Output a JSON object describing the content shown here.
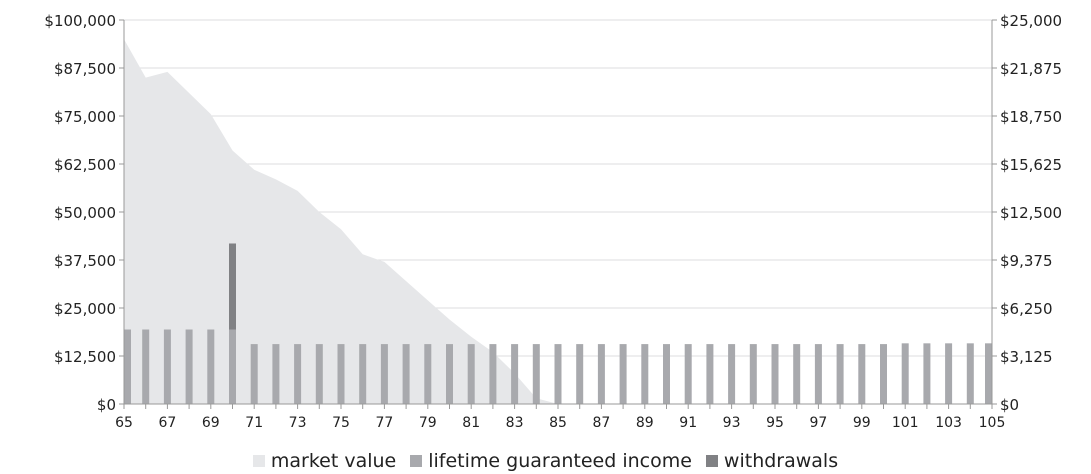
{
  "chart_data": {
    "type": "area",
    "x": [
      65,
      66,
      67,
      68,
      69,
      70,
      71,
      72,
      73,
      74,
      75,
      76,
      77,
      78,
      79,
      80,
      81,
      82,
      83,
      84,
      85,
      86,
      87,
      88,
      89,
      90,
      91,
      92,
      93,
      94,
      95,
      96,
      97,
      98,
      99,
      100,
      101,
      102,
      103,
      104,
      105
    ],
    "x_tick_labels": [
      "65",
      "67",
      "69",
      "71",
      "73",
      "75",
      "77",
      "79",
      "81",
      "83",
      "85",
      "87",
      "89",
      "91",
      "93",
      "95",
      "97",
      "99",
      "101",
      "103",
      "105"
    ],
    "left_axis": {
      "ylim": [
        0,
        100000
      ],
      "tick_labels": [
        "$0",
        "$12,500",
        "$25,000",
        "$37,500",
        "$50,000",
        "$62,500",
        "$75,000",
        "$87,500",
        "$100,000"
      ]
    },
    "right_axis": {
      "ylim": [
        0,
        25000
      ],
      "tick_labels": [
        "$0",
        "$3,125",
        "$6,250",
        "$9,375",
        "$12,500",
        "$15,625",
        "$18,750",
        "$21,875",
        "$25,000"
      ]
    },
    "series": [
      {
        "name": "market value",
        "type": "area",
        "axis": "left",
        "color": "#e6e7e9",
        "values": [
          95000,
          85000,
          86500,
          81000,
          75500,
          66000,
          61000,
          58500,
          55500,
          50000,
          45500,
          39000,
          37000,
          32000,
          27000,
          22000,
          17500,
          13500,
          8000,
          1500,
          0,
          0,
          0,
          0,
          0,
          0,
          0,
          0,
          0,
          0,
          0,
          0,
          0,
          0,
          0,
          0,
          0,
          0,
          0,
          0,
          0
        ]
      },
      {
        "name": "lifetime guaranteed income",
        "type": "bar",
        "axis": "right",
        "color": "#a8a9ad",
        "values": [
          4850,
          4850,
          4850,
          4850,
          4850,
          4850,
          3900,
          3900,
          3900,
          3900,
          3900,
          3900,
          3900,
          3900,
          3900,
          3900,
          3900,
          3900,
          3900,
          3900,
          3900,
          3900,
          3900,
          3900,
          3900,
          3900,
          3900,
          3900,
          3900,
          3900,
          3900,
          3900,
          3900,
          3900,
          3900,
          3900,
          3950,
          3950,
          3950,
          3950,
          3950
        ]
      },
      {
        "name": "withdrawals",
        "type": "bar",
        "axis": "right",
        "color": "#808184",
        "values": [
          0,
          0,
          0,
          0,
          0,
          5600,
          0,
          0,
          0,
          0,
          0,
          0,
          0,
          0,
          0,
          0,
          0,
          0,
          0,
          0,
          0,
          0,
          0,
          0,
          0,
          0,
          0,
          0,
          0,
          0,
          0,
          0,
          0,
          0,
          0,
          0,
          0,
          0,
          0,
          0,
          0
        ]
      }
    ],
    "grid": true,
    "legend_position": "bottom-center"
  },
  "legend": [
    {
      "label": "market value",
      "color": "#e6e7e9"
    },
    {
      "label": "lifetime guaranteed income",
      "color": "#a8a9ad"
    },
    {
      "label": "withdrawals",
      "color": "#808184"
    }
  ]
}
